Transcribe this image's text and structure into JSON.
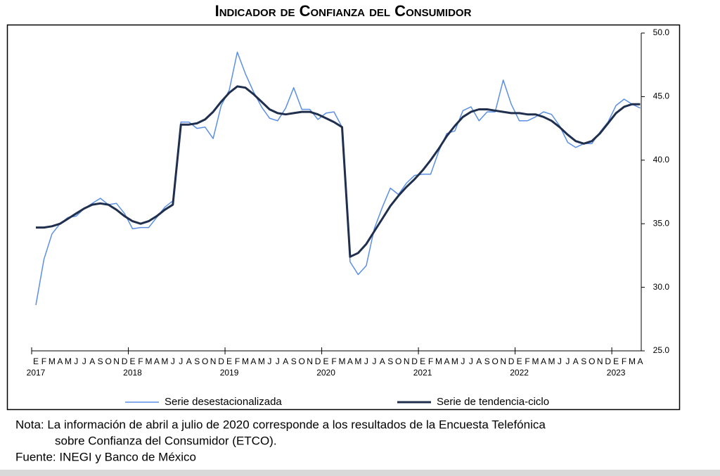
{
  "chart_data": {
    "type": "line",
    "title": "Indicador de Confianza del Consumidor",
    "categories": [
      "E",
      "F",
      "M",
      "A",
      "M",
      "J",
      "J",
      "A",
      "S",
      "O",
      "N",
      "D",
      "E",
      "F",
      "M",
      "A",
      "M",
      "J",
      "J",
      "A",
      "S",
      "O",
      "N",
      "D",
      "E",
      "F",
      "M",
      "A",
      "M",
      "J",
      "J",
      "A",
      "S",
      "O",
      "N",
      "D",
      "E",
      "F",
      "M",
      "A",
      "M",
      "J",
      "J",
      "A",
      "S",
      "O",
      "N",
      "D",
      "E",
      "F",
      "M",
      "A",
      "M",
      "J",
      "J",
      "A",
      "S",
      "O",
      "N",
      "D",
      "E",
      "F",
      "M",
      "A",
      "M",
      "J",
      "J",
      "A",
      "S",
      "O",
      "N",
      "D",
      "E",
      "F",
      "M",
      "A"
    ],
    "years": [
      "2017",
      "2018",
      "2019",
      "2020",
      "2021",
      "2022",
      "2023"
    ],
    "series": [
      {
        "name": "Serie desestacionalizada",
        "color": "#5b8fe6",
        "width": 1.5,
        "values": [
          28.6,
          32.2,
          34.2,
          35.0,
          35.5,
          35.6,
          36.2,
          36.6,
          37.0,
          36.5,
          36.6,
          35.8,
          34.6,
          34.7,
          34.7,
          35.5,
          36.3,
          36.8,
          43.0,
          43.0,
          42.5,
          42.6,
          41.7,
          44.3,
          45.5,
          48.5,
          46.8,
          45.4,
          44.2,
          43.3,
          43.1,
          44.1,
          45.7,
          44.0,
          44.0,
          43.2,
          43.7,
          43.8,
          42.6,
          32.0,
          31.0,
          31.7,
          34.6,
          36.3,
          37.8,
          37.3,
          38.2,
          38.8,
          38.9,
          38.9,
          40.7,
          42.1,
          42.3,
          43.9,
          44.2,
          43.1,
          43.8,
          43.8,
          46.3,
          44.4,
          43.1,
          43.1,
          43.4,
          43.8,
          43.6,
          42.7,
          41.4,
          41.0,
          41.3,
          41.3,
          42.2,
          43.0,
          44.3,
          44.8,
          44.4,
          44.1
        ]
      },
      {
        "name": "Serie de tendencia-ciclo",
        "color": "#1f2f4d",
        "width": 3,
        "values": [
          34.7,
          34.7,
          34.8,
          35.0,
          35.4,
          35.8,
          36.2,
          36.5,
          36.6,
          36.5,
          36.1,
          35.6,
          35.2,
          35.0,
          35.2,
          35.6,
          36.1,
          36.5,
          42.8,
          42.8,
          42.9,
          43.2,
          43.8,
          44.6,
          45.3,
          45.8,
          45.7,
          45.2,
          44.6,
          44.0,
          43.7,
          43.6,
          43.7,
          43.8,
          43.8,
          43.6,
          43.3,
          43.0,
          42.6,
          32.4,
          32.7,
          33.4,
          34.4,
          35.4,
          36.4,
          37.2,
          37.9,
          38.5,
          39.2,
          40.0,
          40.9,
          41.9,
          42.7,
          43.4,
          43.8,
          44.0,
          44.0,
          43.9,
          43.8,
          43.7,
          43.7,
          43.6,
          43.6,
          43.4,
          43.1,
          42.6,
          42.0,
          41.5,
          41.3,
          41.5,
          42.1,
          42.9,
          43.7,
          44.2,
          44.4,
          44.4
        ]
      }
    ],
    "ylim": [
      25,
      50
    ],
    "yticks": [
      {
        "value": 25,
        "label": "25.0"
      },
      {
        "value": 30,
        "label": "30.0"
      },
      {
        "value": 35,
        "label": "35.0"
      },
      {
        "value": 40,
        "label": "40.0"
      },
      {
        "value": 45,
        "label": "45.0"
      },
      {
        "value": 50,
        "label": "50.0"
      }
    ],
    "y_axis_side": "right",
    "notes": [
      "Nota: La información de abril a julio de 2020 corresponde a los resultados de la Encuesta Telefónica",
      "sobre Confianza del Consumidor (ETCO).",
      "Fuente: INEGI y Banco de México"
    ]
  }
}
